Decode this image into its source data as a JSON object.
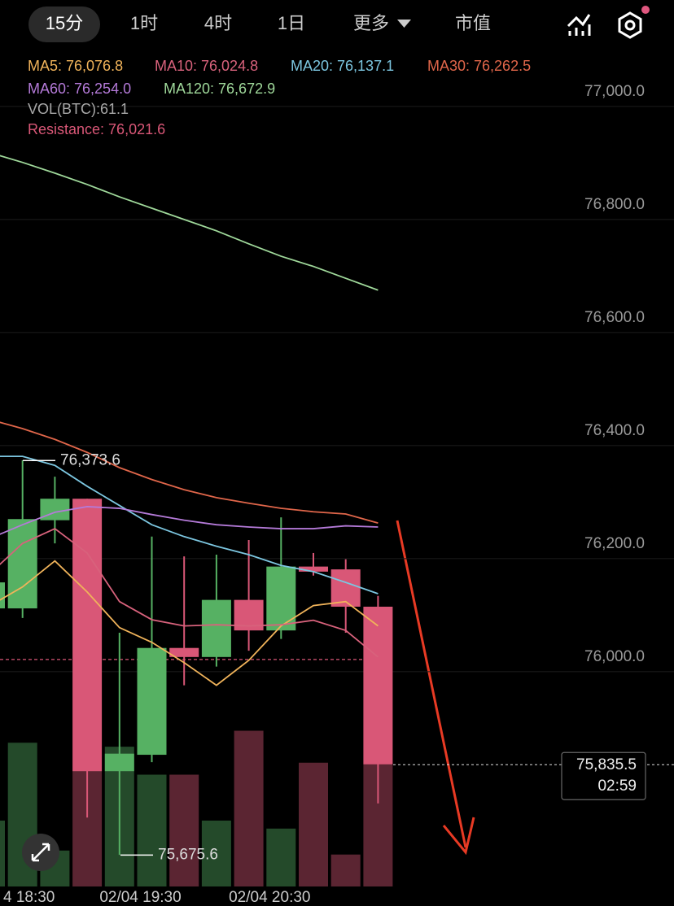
{
  "tabs": [
    "15分",
    "1时",
    "4时",
    "1日",
    "更多",
    "市值"
  ],
  "chart_data": {
    "type": "candlestick",
    "categories": [
      null,
      "4 18:30",
      null,
      null,
      null,
      "02/04 19:30",
      null,
      null,
      null,
      "02/04 20:30",
      null,
      null,
      null
    ],
    "open": [
      76112,
      76112,
      76268,
      76306,
      75824,
      75853,
      76042,
      76026,
      76127,
      76073,
      76186,
      76181,
      76115
    ],
    "high": [
      76170,
      76374,
      76345,
      76306,
      76069,
      76239,
      76204,
      76207,
      76233,
      76273,
      76210,
      76199,
      76134
    ],
    "low": [
      76100,
      76095,
      76227,
      75742,
      75676,
      75840,
      75976,
      76009,
      76037,
      76058,
      76170,
      76069,
      75767
    ],
    "close": [
      76158,
      76270,
      76306,
      75824,
      75855,
      76042,
      76026,
      76127,
      76073,
      76186,
      76177,
      76115,
      75836
    ],
    "up_color": "#56b163",
    "down_color": "#d95777",
    "ylim": [
      75620,
      77102
    ],
    "yticks": [
      {
        "value": 76000,
        "label": "76,000.0"
      },
      {
        "value": 76200,
        "label": "76,200.0"
      },
      {
        "value": 76400,
        "label": "76,400.0"
      },
      {
        "value": 76600,
        "label": "76,600.0"
      },
      {
        "value": 76800,
        "label": "76,800.0"
      },
      {
        "value": 77000,
        "label": "77,000.0"
      }
    ],
    "grid": true,
    "series": [
      {
        "name": "MA5: 76,076.8",
        "color": "#f0b35a",
        "values": [
          76117,
          76150,
          76196,
          76141,
          76078,
          76052,
          76016,
          75976,
          76020,
          76081,
          76117,
          76124,
          76081
        ]
      },
      {
        "name": "MA10: 76,024.8",
        "color": "#d8627c",
        "values": [
          76174,
          76227,
          76253,
          76210,
          76124,
          76092,
          76081,
          76083,
          76081,
          76083,
          76091,
          76073,
          76026
        ]
      },
      {
        "name": "MA20: 76,137.1",
        "color": "#7cc6e0",
        "values": [
          76381,
          76381,
          76365,
          76328,
          76294,
          76260,
          76239,
          76222,
          76207,
          76188,
          76177,
          76158,
          76138
        ]
      },
      {
        "name": "MA30: 76,262.5",
        "color": "#e0664a",
        "values": [
          76446,
          76430,
          76411,
          76388,
          76361,
          76340,
          76322,
          76308,
          76298,
          76289,
          76283,
          76279,
          76263
        ]
      },
      {
        "name": "MA60: 76,254.0",
        "color": "#b47ad8",
        "values": [
          76236,
          76260,
          76282,
          76292,
          76289,
          76278,
          76268,
          76260,
          76256,
          76253,
          76253,
          76258,
          76256
        ]
      },
      {
        "name": "MA120: 76,672.9",
        "color": "#9fd89a",
        "values": [
          76918,
          76901,
          76882,
          76862,
          76840,
          76820,
          76800,
          76780,
          76757,
          76735,
          76717,
          76696,
          76675
        ]
      }
    ],
    "volume": {
      "name": "VOL(BTC):61.1",
      "color": "#a8a8a8",
      "values": [
        33,
        72,
        18,
        58,
        70,
        56,
        56,
        33,
        78,
        29,
        62,
        16,
        61.1
      ]
    },
    "resistance": {
      "label": "Resistance: 76,021.6",
      "value": 76021.6,
      "color": "#d95777"
    },
    "annotations": [
      {
        "value": 76373.6,
        "label": "76,373.6"
      },
      {
        "value": 75675.6,
        "label": "75,675.6"
      }
    ],
    "current_price": {
      "value": 75835.5,
      "label": "75,835.5",
      "countdown": "02:59"
    }
  }
}
